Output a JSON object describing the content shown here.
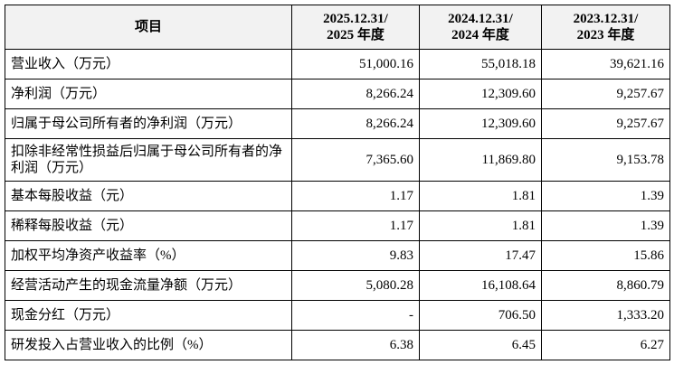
{
  "table": {
    "header": [
      [
        "项目"
      ],
      [
        "2025.12.31/",
        "2025 年度"
      ],
      [
        "2024.12.31/",
        "2024 年度"
      ],
      [
        "2023.12.31/",
        "2023 年度"
      ]
    ],
    "rows": [
      [
        "营业收入（万元）",
        "51,000.16",
        "55,018.18",
        "39,621.16"
      ],
      [
        "净利润（万元）",
        "8,266.24",
        "12,309.60",
        "9,257.67"
      ],
      [
        "归属于母公司所有者的净利润（万元）",
        "8,266.24",
        "12,309.60",
        "9,257.67"
      ],
      [
        "扣除非经常性损益后归属于母公司所有者的净利润（万元）",
        "7,365.60",
        "11,869.80",
        "9,153.78"
      ],
      [
        "基本每股收益（元）",
        "1.17",
        "1.81",
        "1.39"
      ],
      [
        "稀释每股收益（元）",
        "1.17",
        "1.81",
        "1.39"
      ],
      [
        "加权平均净资产收益率（%）",
        "9.83",
        "17.47",
        "15.86"
      ],
      [
        "经营活动产生的现金流量净额（万元）",
        "5,080.28",
        "16,108.64",
        "8,860.79"
      ],
      [
        "现金分红（万元）",
        "-",
        "706.50",
        "1,333.20"
      ],
      [
        "研发投入占营业收入的比例（%）",
        "6.38",
        "6.45",
        "6.27"
      ]
    ]
  }
}
